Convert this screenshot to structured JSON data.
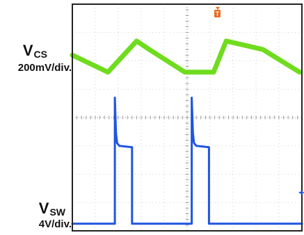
{
  "chart_data": {
    "type": "line",
    "title": "",
    "grid": true,
    "divisions": {
      "x": 10,
      "y": 8
    },
    "trigger_marker": "T",
    "channels": [
      {
        "name_main": "V",
        "name_sub": "CS",
        "scale": "200mV/div.",
        "color": "#6fdc1e",
        "x_div": [
          0,
          1.55,
          2.8,
          3.35,
          4.9,
          6.15,
          6.7,
          8.3,
          9.9
        ],
        "y_div": [
          6.2,
          5.6,
          6.7,
          6.4,
          5.6,
          5.6,
          6.7,
          6.4,
          5.6
        ]
      },
      {
        "name_main": "V",
        "name_sub": "SW",
        "scale": "4V/div.",
        "color": "#1f55e0",
        "x_div": [
          0,
          1.85,
          1.85,
          1.9,
          1.95,
          2.05,
          2.6,
          2.6,
          2.65,
          5.2,
          5.2,
          5.25,
          5.3,
          5.4,
          5.95,
          5.95,
          6.0,
          10.0
        ],
        "y_div": [
          0.25,
          0.25,
          4.7,
          3.45,
          3.1,
          3.0,
          2.95,
          0.25,
          0.25,
          0.25,
          4.7,
          3.45,
          3.1,
          3.0,
          2.95,
          0.25,
          0.25,
          0.25
        ]
      }
    ]
  }
}
